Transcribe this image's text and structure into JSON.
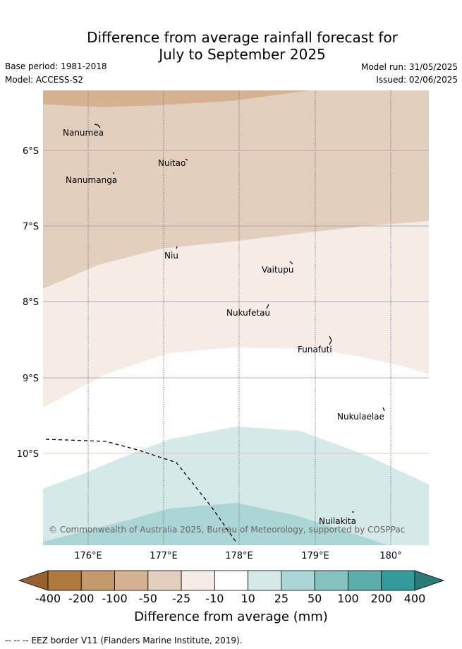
{
  "title": {
    "line1": "Difference from average rainfall forecast for",
    "line2": "July to September 2025"
  },
  "meta": {
    "base_period": "Base period: 1981-2018",
    "model": "Model: ACCESS-S2",
    "model_run": "Model run: 31/05/2025",
    "issued": "Issued: 02/06/2025"
  },
  "map": {
    "lat_labels": [
      "6°S",
      "7°S",
      "8°S",
      "9°S",
      "10°S"
    ],
    "lon_labels": [
      "176°E",
      "177°E",
      "178°E",
      "179°E",
      "180°"
    ],
    "islands": [
      {
        "name": "Nanumea"
      },
      {
        "name": "Nuitao"
      },
      {
        "name": "Nanumanga"
      },
      {
        "name": "Niu"
      },
      {
        "name": "Vaitupu"
      },
      {
        "name": "Nukufetau"
      },
      {
        "name": "Funafuti"
      },
      {
        "name": "Nukulaelae"
      },
      {
        "name": "Nuilakita"
      }
    ],
    "copyright": "© Commonwealth of Australia 2025, Bureau of Meteorology, supported by COSPPac"
  },
  "colorbar": {
    "title": "Difference from average (mm)",
    "labels": [
      "-400",
      "-200",
      "-100",
      "-50",
      "-25",
      "-10",
      "10",
      "25",
      "50",
      "100",
      "200",
      "400"
    ],
    "colors": [
      "#b07940",
      "#c49a6c",
      "#d4b292",
      "#e3cfbd",
      "#f5ece6",
      "#ffffff",
      "#d5e9e8",
      "#acd6d5",
      "#85c2c0",
      "#5cadac",
      "#339c9a"
    ],
    "under_color": "#96612e",
    "over_color": "#2a7a78"
  },
  "footer": "-- -- -- EEZ border V11 (Flanders Marine Institute, 2019)."
}
